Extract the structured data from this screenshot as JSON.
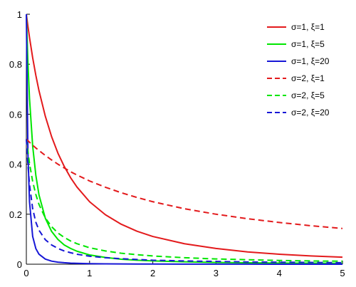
{
  "chart_data": {
    "type": "line",
    "title": "",
    "xlabel": "",
    "ylabel": "",
    "xlim": [
      0,
      5
    ],
    "ylim": [
      0,
      1
    ],
    "xticks": [
      "0",
      "1",
      "2",
      "3",
      "4",
      "5"
    ],
    "yticks": [
      "0",
      "0.2",
      "0.4",
      "0.6",
      "0.8",
      "1"
    ],
    "grid": false,
    "legend_position": "top-right",
    "x": [
      0,
      0.025,
      0.05,
      0.1,
      0.15,
      0.2,
      0.3,
      0.4,
      0.5,
      0.6,
      0.7,
      0.8,
      1.0,
      1.25,
      1.5,
      1.75,
      2.0,
      2.5,
      3.0,
      3.5,
      4.0,
      4.5,
      5.0
    ],
    "series": [
      {
        "name": "σ=1, ξ=1",
        "color": "#e31a1c",
        "dash": "solid",
        "values": [
          1,
          0.952,
          0.907,
          0.826,
          0.756,
          0.694,
          0.592,
          0.51,
          0.444,
          0.391,
          0.346,
          0.309,
          0.25,
          0.198,
          0.16,
          0.132,
          0.111,
          0.082,
          0.063,
          0.049,
          0.04,
          0.033,
          0.028
        ]
      },
      {
        "name": "σ=1, ξ=5",
        "color": "#00e600",
        "dash": "solid",
        "values": [
          1,
          0.806,
          0.663,
          0.473,
          0.356,
          0.277,
          0.184,
          0.131,
          0.099,
          0.077,
          0.063,
          0.052,
          0.037,
          0.027,
          0.02,
          0.016,
          0.0132,
          0.0095,
          0.0073,
          0.0058,
          0.0048,
          0.0041,
          0.0035
        ]
      },
      {
        "name": "σ=1, ξ=20",
        "color": "#1717d6",
        "dash": "solid",
        "values": [
          1,
          0.444,
          0.25,
          0.111,
          0.0625,
          0.04,
          0.0204,
          0.0123,
          0.0083,
          0.0059,
          0.0044,
          0.0035,
          0.0023,
          0.0015,
          0.0011,
          0.0008,
          0.0006,
          0.0004,
          0.0003,
          0.0002,
          0.00015,
          0.00012,
          0.0001
        ]
      },
      {
        "name": "σ=2, ξ=1",
        "color": "#e31a1c",
        "dash": "dashed",
        "values": [
          0.5,
          0.494,
          0.488,
          0.476,
          0.465,
          0.455,
          0.435,
          0.417,
          0.4,
          0.385,
          0.37,
          0.357,
          0.333,
          0.308,
          0.286,
          0.267,
          0.25,
          0.222,
          0.2,
          0.182,
          0.167,
          0.154,
          0.143
        ]
      },
      {
        "name": "σ=2, ξ=5",
        "color": "#00e600",
        "dash": "dashed",
        "values": [
          0.5,
          0.45,
          0.403,
          0.331,
          0.279,
          0.239,
          0.185,
          0.15,
          0.125,
          0.107,
          0.093,
          0.082,
          0.066,
          0.053,
          0.044,
          0.038,
          0.033,
          0.026,
          0.021,
          0.018,
          0.015,
          0.013,
          0.012
        ]
      },
      {
        "name": "σ=2, ξ=20",
        "color": "#1717d6",
        "dash": "dashed",
        "values": [
          0.5,
          0.397,
          0.319,
          0.222,
          0.168,
          0.136,
          0.098,
          0.077,
          0.063,
          0.053,
          0.046,
          0.04,
          0.032,
          0.026,
          0.022,
          0.019,
          0.016,
          0.013,
          0.011,
          0.009,
          0.008,
          0.007,
          0.006
        ]
      }
    ]
  }
}
